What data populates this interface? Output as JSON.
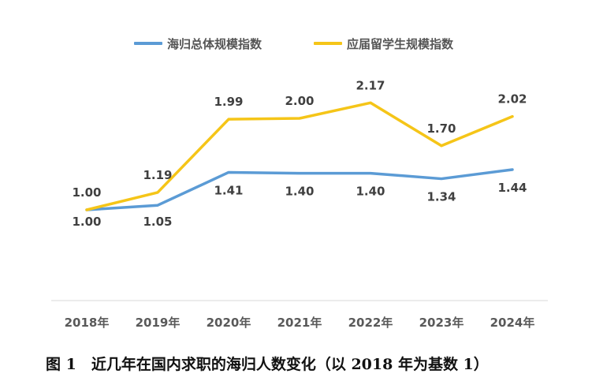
{
  "chart_data": {
    "type": "line",
    "categories": [
      "2018年",
      "2019年",
      "2020年",
      "2021年",
      "2022年",
      "2023年",
      "2024年"
    ],
    "series": [
      {
        "name": "海归总体规模指数",
        "values": [
          1.0,
          1.05,
          1.41,
          1.4,
          1.4,
          1.34,
          1.44
        ],
        "color": "#5B9BD5"
      },
      {
        "name": "应届留学生规模指数",
        "values": [
          1.0,
          1.19,
          1.99,
          2.0,
          2.17,
          1.7,
          2.02
        ],
        "color": "#F5C518"
      }
    ],
    "data_labels": [
      [
        "1.00",
        "1.05",
        "1.41",
        "1.40",
        "1.40",
        "1.34",
        "1.44"
      ],
      [
        "1.00",
        "1.19",
        "1.99",
        "2.00",
        "2.17",
        "1.70",
        "2.02"
      ]
    ],
    "title": "",
    "xlabel": "",
    "ylabel": "",
    "legend": "top-center",
    "grid": false,
    "axis_color": "#D9D9D9",
    "label_color": "#404040"
  },
  "legend": [
    {
      "label": "海归总体规模指数",
      "color": "#5B9BD5"
    },
    {
      "label": "应届留学生规模指数",
      "color": "#F5C518"
    }
  ],
  "caption": "图 1　近几年在国内求职的海归人数变化（以 2018 年为基数 1）"
}
